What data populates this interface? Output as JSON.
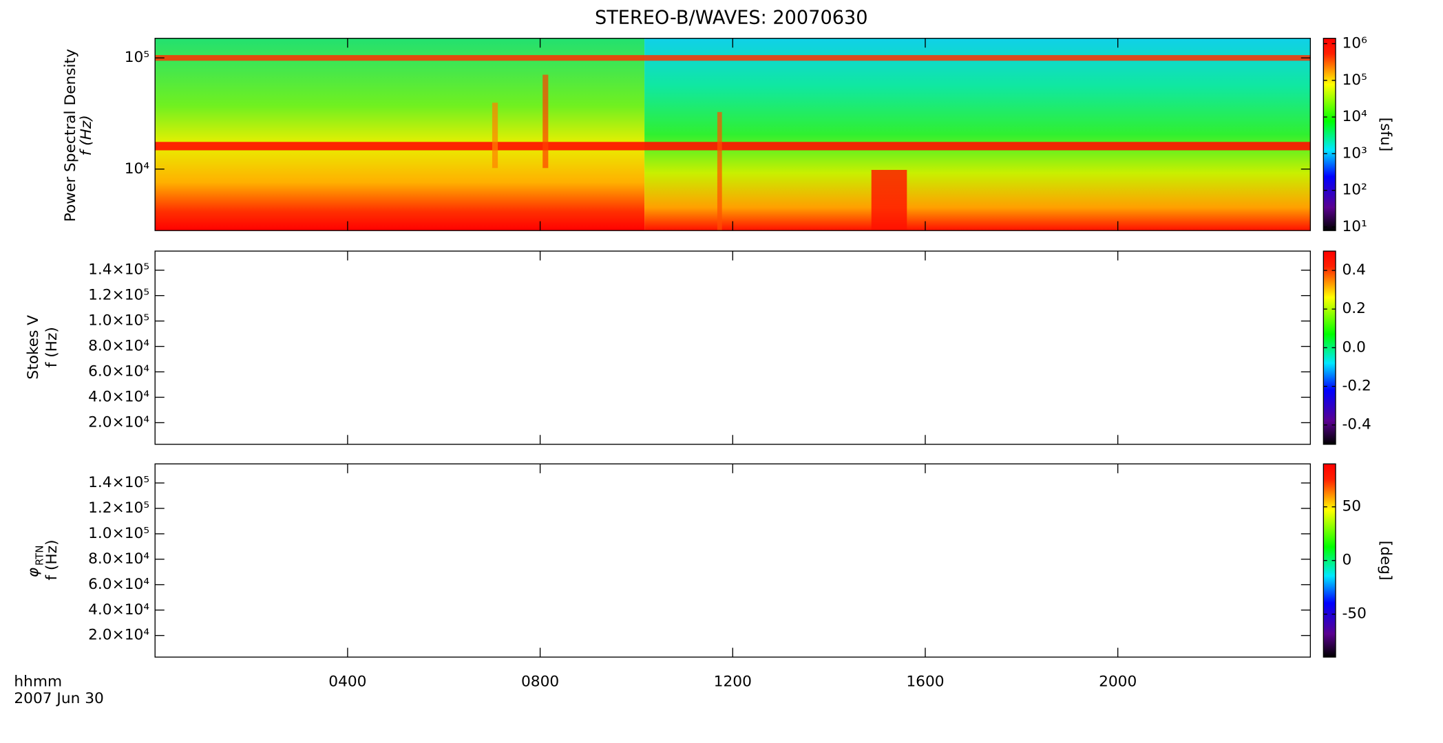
{
  "title": "STEREO-B/WAVES: 20070630",
  "x_axis": {
    "labels": [
      "hhmm",
      "2007 Jun 30"
    ],
    "xlim": [
      0,
      24
    ],
    "xticks": [
      {
        "value": 4,
        "label": "0400"
      },
      {
        "value": 8,
        "label": "0800"
      },
      {
        "value": 12,
        "label": "1200"
      },
      {
        "value": 16,
        "label": "1600"
      },
      {
        "value": 20,
        "label": "2000"
      }
    ]
  },
  "chart_data": [
    {
      "type": "heatmap",
      "ylabel": [
        "Power Spectral Density",
        "f (Hz)"
      ],
      "ylog": true,
      "ylim": [
        2800,
        150000
      ],
      "yticks": [
        {
          "value": 10000,
          "label": "10⁴"
        },
        {
          "value": 100000,
          "label": "10⁵"
        }
      ],
      "colorbar": {
        "log": true,
        "lim": [
          8,
          1400000
        ],
        "label": "[sfu]",
        "ticks": [
          {
            "value": 10,
            "label": "10¹"
          },
          {
            "value": 100,
            "label": "10²"
          },
          {
            "value": 1000,
            "label": "10³"
          },
          {
            "value": 10000,
            "label": "10⁴"
          },
          {
            "value": 100000,
            "label": "10⁵"
          },
          {
            "value": 1000000,
            "label": "10⁶"
          }
        ]
      }
    },
    {
      "type": "heatmap",
      "ylabel": [
        "Stokes V",
        "f (Hz)"
      ],
      "ylog": false,
      "ylim": [
        3000,
        155000
      ],
      "yticks": [
        {
          "value": 20000,
          "label": "2.0×10⁴"
        },
        {
          "value": 40000,
          "label": "4.0×10⁴"
        },
        {
          "value": 60000,
          "label": "6.0×10⁴"
        },
        {
          "value": 80000,
          "label": "8.0×10⁴"
        },
        {
          "value": 100000,
          "label": "1.0×10⁵"
        },
        {
          "value": 120000,
          "label": "1.2×10⁵"
        },
        {
          "value": 140000,
          "label": "1.4×10⁵"
        }
      ],
      "colorbar": {
        "log": false,
        "lim": [
          -0.5,
          0.5
        ],
        "ticks": [
          {
            "value": -0.4,
            "label": "-0.4"
          },
          {
            "value": -0.2,
            "label": "-0.2"
          },
          {
            "value": 0,
            "label": "0.0"
          },
          {
            "value": 0.2,
            "label": "0.2"
          },
          {
            "value": 0.4,
            "label": "0.4"
          }
        ]
      }
    },
    {
      "type": "heatmap",
      "ylabel": [
        "φ",
        "RTN",
        "f (Hz)"
      ],
      "ylog": false,
      "ylim": [
        3000,
        155000
      ],
      "yticks": [
        {
          "value": 20000,
          "label": "2.0×10⁴"
        },
        {
          "value": 40000,
          "label": "4.0×10⁴"
        },
        {
          "value": 60000,
          "label": "6.0×10⁴"
        },
        {
          "value": 80000,
          "label": "8.0×10⁴"
        },
        {
          "value": 100000,
          "label": "1.0×10⁵"
        },
        {
          "value": 120000,
          "label": "1.2×10⁵"
        },
        {
          "value": 140000,
          "label": "1.4×10⁵"
        }
      ],
      "colorbar": {
        "log": false,
        "lim": [
          -90,
          90
        ],
        "label": "[deg]",
        "ticks": [
          -50,
          0,
          50
        ]
      }
    }
  ]
}
